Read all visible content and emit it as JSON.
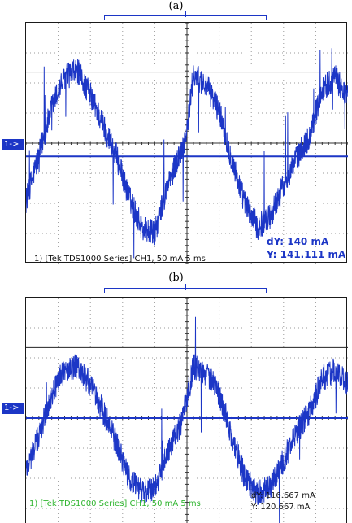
{
  "figure": {
    "panels": [
      {
        "caption": "(a)",
        "channel_marker": "1->",
        "status_line": "1) [Tek TDS1000 Series] CH1, 50 mA   5 ms",
        "cursor": {
          "dy": "dY: 140 mA",
          "y": "Y: 141.111 mA"
        },
        "colors": {
          "trace": "#1c36c6",
          "status": "#111111",
          "readout": "#1c36c6"
        }
      },
      {
        "caption": "(b)",
        "channel_marker": "1->",
        "status_line": "1) [Tek TDS1000 Series] CH1, 50 mA   5 ms",
        "cursor": {
          "dy": "dY: 116.667 mA",
          "y": "Y: 120.667 mA"
        },
        "colors": {
          "trace": "#1c36c6",
          "status": "#2fb52f",
          "readout": "#111111"
        }
      }
    ]
  },
  "chart_data": [
    {
      "type": "line",
      "title": "",
      "xlabel": "",
      "ylabel": "",
      "units": {
        "x": "ms",
        "y": "mA"
      },
      "scale": {
        "x_per_div": 5,
        "y_per_div": 50,
        "x_divisions": 10,
        "y_divisions": 8
      },
      "xlim": [
        -25,
        25
      ],
      "ylim": [
        -200,
        200
      ],
      "grid": true,
      "series": [
        {
          "name": "",
          "x": [
            -25,
            -23,
            -21,
            -19,
            -17,
            -15,
            -13,
            -11,
            -9,
            -7,
            -5,
            -3,
            -1,
            0,
            1,
            3,
            5,
            7,
            9,
            11,
            13,
            15,
            17,
            19,
            21,
            23,
            25
          ],
          "y": [
            -95,
            -20,
            60,
            110,
            120,
            80,
            30,
            -20,
            -90,
            -140,
            -150,
            -70,
            -15,
            20,
            115,
            95,
            55,
            -30,
            -100,
            -140,
            -120,
            -70,
            -25,
            10,
            90,
            110,
            75
          ]
        }
      ],
      "cursors": {
        "y1": 118,
        "y2": -22,
        "dy": 140
      }
    },
    {
      "type": "line",
      "title": "",
      "xlabel": "",
      "ylabel": "",
      "units": {
        "x": "ms",
        "y": "mA"
      },
      "scale": {
        "x_per_div": 5,
        "y_per_div": 50,
        "x_divisions": 10,
        "y_divisions": 8
      },
      "xlim": [
        -25,
        25
      ],
      "ylim": [
        -200,
        200
      ],
      "grid": true,
      "series": [
        {
          "name": "",
          "x": [
            -25,
            -23,
            -21,
            -19,
            -17,
            -15,
            -13,
            -11,
            -9,
            -7,
            -5,
            -3,
            -1,
            0,
            1,
            3,
            5,
            7,
            9,
            11,
            13,
            15,
            17,
            19,
            21,
            23,
            25
          ],
          "y": [
            -85,
            -30,
            40,
            80,
            85,
            55,
            10,
            -40,
            -100,
            -125,
            -115,
            -60,
            -10,
            35,
            85,
            75,
            40,
            -30,
            -100,
            -125,
            -115,
            -70,
            -25,
            10,
            65,
            80,
            55
          ]
        }
      ],
      "cursors": {
        "y1": 117,
        "y2": 0,
        "dy": 116.667
      }
    }
  ]
}
